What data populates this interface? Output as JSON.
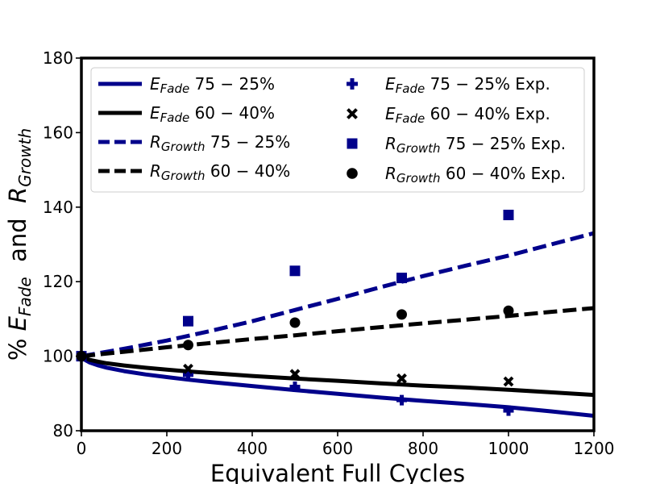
{
  "chart_data": {
    "type": "line",
    "xlabel": "Equivalent Full Cycles",
    "ylabel": {
      "prefix": "% ",
      "var1": "E",
      "sub1": "Fade",
      "mid": "  and  ",
      "var2": "R",
      "sub2": "Growth"
    },
    "xlim": [
      0,
      1200
    ],
    "ylim": [
      80,
      180
    ],
    "x_ticks": [
      "0",
      "200",
      "400",
      "600",
      "800",
      "1000",
      "1200"
    ],
    "y_ticks": [
      "80",
      "100",
      "120",
      "140",
      "160",
      "180"
    ],
    "grid": false,
    "legend_position": "top",
    "colors": {
      "navy": "#00008b",
      "black": "#000000"
    },
    "lines": [
      {
        "legend": {
          "var": "E",
          "sub": "Fade",
          "rest": " 75 − 25%"
        },
        "color": "#00008b",
        "style": "solid",
        "x": [
          0,
          10,
          20,
          40,
          60,
          100,
          150,
          200,
          250,
          300,
          400,
          500,
          600,
          700,
          800,
          900,
          1000,
          1100,
          1200
        ],
        "y": [
          100,
          98.9,
          98.3,
          97.5,
          96.9,
          96.0,
          95.1,
          94.4,
          93.7,
          93.1,
          92.0,
          90.9,
          89.9,
          88.9,
          88.0,
          87.2,
          86.3,
          85.2,
          84.0
        ]
      },
      {
        "legend": {
          "var": "E",
          "sub": "Fade",
          "rest": " 60 − 40%"
        },
        "color": "#000000",
        "style": "solid",
        "x": [
          0,
          10,
          20,
          40,
          60,
          100,
          150,
          200,
          250,
          300,
          400,
          500,
          600,
          700,
          800,
          900,
          1000,
          1100,
          1200
        ],
        "y": [
          100,
          99.4,
          99.0,
          98.5,
          98.1,
          97.5,
          96.9,
          96.4,
          95.9,
          95.5,
          94.7,
          94.0,
          93.4,
          92.7,
          92.1,
          91.6,
          91.0,
          90.3,
          89.6
        ]
      },
      {
        "legend": {
          "var": "R",
          "sub": "Growth",
          "rest": " 75 − 25%"
        },
        "color": "#00008b",
        "style": "dashed",
        "x": [
          0,
          100,
          200,
          300,
          400,
          500,
          600,
          700,
          800,
          900,
          1000,
          1100,
          1200
        ],
        "y": [
          100,
          102.0,
          104.2,
          106.7,
          109.4,
          112.4,
          115.4,
          118.5,
          121.5,
          124.3,
          127.0,
          130.0,
          133.0
        ]
      },
      {
        "legend": {
          "var": "R",
          "sub": "Growth",
          "rest": " 60 − 40%"
        },
        "color": "#000000",
        "style": "dashed",
        "x": [
          0,
          100,
          200,
          300,
          400,
          500,
          600,
          700,
          800,
          900,
          1000,
          1100,
          1200
        ],
        "y": [
          100,
          101.2,
          102.4,
          103.5,
          104.6,
          105.6,
          106.7,
          107.8,
          108.8,
          109.8,
          110.8,
          111.9,
          112.9
        ]
      }
    ],
    "points": [
      {
        "legend": {
          "var": "E",
          "sub": "Fade",
          "rest": " 75 − 25% Exp."
        },
        "color": "#00008b",
        "marker": "plus",
        "x": [
          0,
          250,
          500,
          750,
          1000
        ],
        "y": [
          100,
          95.0,
          91.8,
          88.2,
          85.4
        ]
      },
      {
        "legend": {
          "var": "E",
          "sub": "Fade",
          "rest": " 60 − 40% Exp."
        },
        "color": "#000000",
        "marker": "x",
        "x": [
          0,
          250,
          500,
          750,
          1000
        ],
        "y": [
          100,
          96.6,
          95.2,
          94.0,
          93.2
        ]
      },
      {
        "legend": {
          "var": "R",
          "sub": "Growth",
          "rest": " 75 − 25% Exp."
        },
        "color": "#00008b",
        "marker": "square",
        "x": [
          0,
          250,
          500,
          750,
          1000
        ],
        "y": [
          100,
          109.4,
          122.9,
          121.0,
          137.9
        ]
      },
      {
        "legend": {
          "var": "R",
          "sub": "Growth",
          "rest": " 60 − 40% Exp."
        },
        "color": "#000000",
        "marker": "circle",
        "x": [
          0,
          250,
          500,
          750,
          1000
        ],
        "y": [
          100,
          103.0,
          109.0,
          111.2,
          112.2
        ]
      }
    ]
  }
}
